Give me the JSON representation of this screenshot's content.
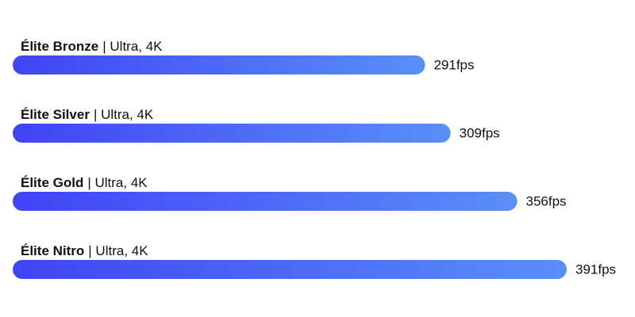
{
  "chart_data": {
    "type": "bar",
    "orientation": "horizontal",
    "categories": [
      "Élite Bronze",
      "Élite Silver",
      "Élite Gold",
      "Élite Nitro"
    ],
    "category_details": [
      "| Ultra, 4K",
      "| Ultra, 4K",
      "| Ultra, 4K",
      "| Ultra, 4K"
    ],
    "values": [
      291,
      309,
      356,
      391
    ],
    "value_labels": [
      "291fps",
      "309fps",
      "356fps",
      "391fps"
    ],
    "color": [
      "#4044f6",
      "#5a8ff8"
    ]
  }
}
